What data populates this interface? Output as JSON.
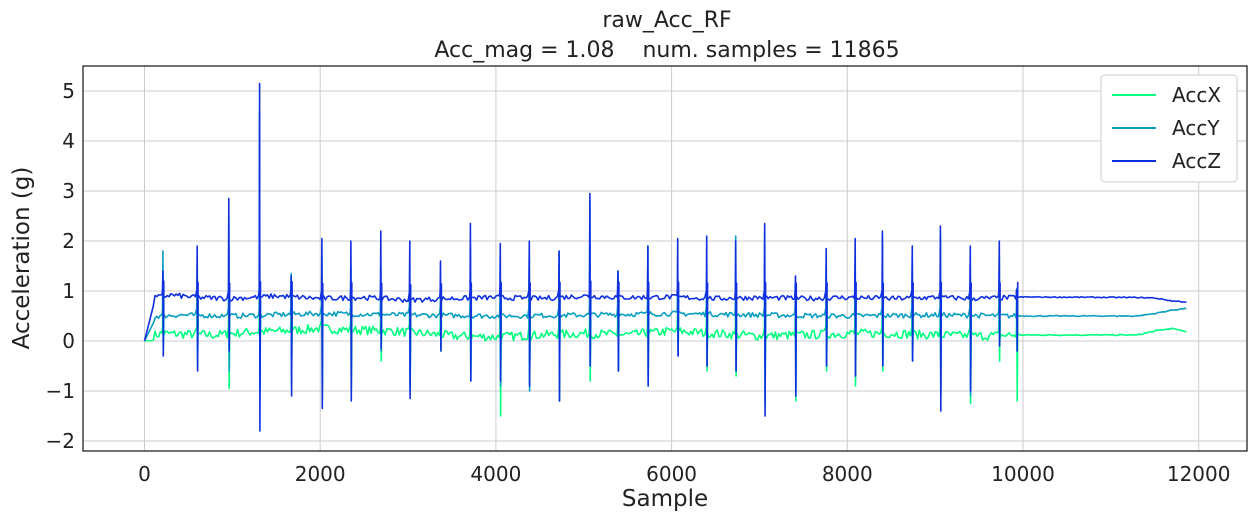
{
  "chart_data": {
    "type": "line",
    "title": "raw_Acc_RF",
    "subtitle": "Acc_mag = 1.08    num. samples = 11865",
    "xlabel": "Sample",
    "ylabel": "Acceleration (g)",
    "xlim": [
      -700,
      12550
    ],
    "ylim": [
      -2.2,
      5.5
    ],
    "xticks": [
      0,
      2000,
      4000,
      6000,
      8000,
      10000,
      12000
    ],
    "xtick_labels": [
      "0",
      "2000",
      "4000",
      "6000",
      "8000",
      "10000",
      "12000"
    ],
    "yticks": [
      -2,
      -1,
      0,
      1,
      2,
      3,
      4,
      5
    ],
    "ytick_labels": [
      "−2",
      "−1",
      "0",
      "1",
      "2",
      "3",
      "4",
      "5"
    ],
    "grid": true,
    "legend_position": "top-right",
    "num_samples": 11865,
    "series": [
      {
        "name": "AccX",
        "color": "#00ff7f",
        "baseline": 0.15,
        "quiet_baseline": 0.12,
        "spikes": [
          [
            210,
            1.3,
            -0.25
          ],
          [
            600,
            1.1,
            -0.5
          ],
          [
            960,
            1.2,
            -0.95
          ],
          [
            1310,
            1.4,
            -0.7
          ],
          [
            1670,
            1.3,
            -0.6
          ],
          [
            2020,
            1.3,
            -0.9
          ],
          [
            2350,
            1.2,
            -0.8
          ],
          [
            2690,
            1.2,
            -0.4
          ],
          [
            3020,
            1.1,
            -0.85
          ],
          [
            3370,
            0.9,
            -0.2
          ],
          [
            3710,
            1.3,
            -0.6
          ],
          [
            4050,
            1.0,
            -1.5
          ],
          [
            4380,
            1.1,
            -0.9
          ],
          [
            4720,
            1.4,
            -0.6
          ],
          [
            5070,
            1.0,
            -0.8
          ],
          [
            5390,
            1.2,
            -0.6
          ],
          [
            5730,
            1.1,
            -0.7
          ],
          [
            6070,
            1.2,
            -0.2
          ],
          [
            6400,
            1.1,
            -0.6
          ],
          [
            6730,
            1.3,
            -0.7
          ],
          [
            7060,
            1.1,
            -0.8
          ],
          [
            7410,
            0.9,
            -1.2
          ],
          [
            7760,
            1.1,
            -0.6
          ],
          [
            8090,
            0.9,
            -0.9
          ],
          [
            8400,
            1.1,
            -0.6
          ],
          [
            8740,
            0.9,
            -0.3
          ],
          [
            9060,
            1.0,
            -0.6
          ],
          [
            9400,
            1.0,
            -1.25
          ],
          [
            9730,
            1.1,
            -0.4
          ],
          [
            9930,
            0.8,
            -1.2
          ]
        ],
        "points": [
          [
            0,
            0.0
          ],
          [
            120,
            0.12
          ],
          [
            200,
            0.15
          ],
          [
            400,
            0.14
          ],
          [
            800,
            0.12
          ],
          [
            1200,
            0.18
          ],
          [
            1600,
            0.2
          ],
          [
            2000,
            0.25
          ],
          [
            2400,
            0.22
          ],
          [
            2800,
            0.2
          ],
          [
            3200,
            0.15
          ],
          [
            3500,
            0.1
          ],
          [
            4000,
            0.08
          ],
          [
            4500,
            0.12
          ],
          [
            5000,
            0.15
          ],
          [
            5500,
            0.12
          ],
          [
            6000,
            0.2
          ],
          [
            6500,
            0.15
          ],
          [
            7000,
            0.1
          ],
          [
            7500,
            0.12
          ],
          [
            8000,
            0.15
          ],
          [
            8500,
            0.15
          ],
          [
            9000,
            0.12
          ],
          [
            9500,
            0.1
          ],
          [
            9900,
            0.12
          ],
          [
            10000,
            0.12
          ],
          [
            11300,
            0.12
          ],
          [
            11500,
            0.2
          ],
          [
            11700,
            0.25
          ],
          [
            11865,
            0.18
          ]
        ]
      },
      {
        "name": "AccY",
        "color": "#0a9ec0",
        "baseline": 0.52,
        "quiet_baseline": 0.5,
        "spikes": [
          [
            210,
            1.8,
            0.3
          ],
          [
            600,
            1.5,
            -0.3
          ],
          [
            960,
            2.5,
            -0.6
          ],
          [
            1310,
            4.6,
            -1.0
          ],
          [
            1670,
            1.35,
            -0.9
          ],
          [
            2020,
            1.7,
            -1.2
          ],
          [
            2350,
            1.5,
            -1.0
          ],
          [
            2690,
            1.5,
            -0.2
          ],
          [
            3020,
            1.0,
            -1.0
          ],
          [
            3370,
            0.8,
            -0.15
          ],
          [
            3710,
            1.9,
            -0.8
          ],
          [
            4050,
            1.1,
            -0.9
          ],
          [
            4380,
            1.7,
            -1.0
          ],
          [
            4720,
            1.8,
            -1.2
          ],
          [
            5070,
            2.8,
            -0.5
          ],
          [
            5390,
            1.4,
            -0.6
          ],
          [
            5730,
            1.9,
            -0.9
          ],
          [
            6070,
            1.3,
            -0.3
          ],
          [
            6400,
            1.4,
            -0.5
          ],
          [
            6730,
            2.1,
            -0.6
          ],
          [
            7060,
            2.2,
            -1.3
          ],
          [
            7410,
            1.0,
            -1.1
          ],
          [
            7760,
            1.5,
            -0.5
          ],
          [
            8090,
            1.7,
            -0.7
          ],
          [
            8400,
            2.1,
            -0.5
          ],
          [
            8740,
            1.6,
            -0.4
          ],
          [
            9060,
            2.1,
            -1.1
          ],
          [
            9400,
            1.5,
            -1.1
          ],
          [
            9730,
            1.7,
            -0.1
          ],
          [
            9930,
            1.05,
            -0.2
          ]
        ],
        "points": [
          [
            0,
            0.0
          ],
          [
            130,
            0.5
          ],
          [
            400,
            0.52
          ],
          [
            1000,
            0.5
          ],
          [
            2000,
            0.55
          ],
          [
            3000,
            0.52
          ],
          [
            4000,
            0.5
          ],
          [
            5000,
            0.52
          ],
          [
            6000,
            0.55
          ],
          [
            7000,
            0.52
          ],
          [
            8000,
            0.5
          ],
          [
            9000,
            0.52
          ],
          [
            9900,
            0.5
          ],
          [
            10000,
            0.5
          ],
          [
            11300,
            0.5
          ],
          [
            11500,
            0.55
          ],
          [
            11700,
            0.62
          ],
          [
            11865,
            0.65
          ]
        ]
      },
      {
        "name": "AccZ",
        "color": "#1030e0",
        "baseline": 0.87,
        "quiet_baseline": 0.87,
        "spikes": [
          [
            210,
            1.4,
            -0.3
          ],
          [
            600,
            1.9,
            -0.6
          ],
          [
            960,
            2.85,
            -0.2
          ],
          [
            1310,
            5.15,
            -1.8
          ],
          [
            1670,
            1.3,
            -1.1
          ],
          [
            2020,
            2.05,
            -1.35
          ],
          [
            2350,
            2.0,
            -1.2
          ],
          [
            2690,
            2.2,
            -0.15
          ],
          [
            3020,
            2.0,
            -1.15
          ],
          [
            3370,
            1.6,
            -0.2
          ],
          [
            3710,
            2.35,
            -0.8
          ],
          [
            4050,
            1.95,
            -0.8
          ],
          [
            4380,
            2.0,
            -0.9
          ],
          [
            4720,
            1.8,
            -1.2
          ],
          [
            5070,
            2.95,
            -0.5
          ],
          [
            5390,
            1.4,
            -0.6
          ],
          [
            5730,
            1.9,
            -0.9
          ],
          [
            6070,
            2.05,
            -0.3
          ],
          [
            6400,
            2.1,
            -0.5
          ],
          [
            6730,
            2.0,
            -0.6
          ],
          [
            7060,
            2.35,
            -1.5
          ],
          [
            7410,
            1.3,
            -1.1
          ],
          [
            7760,
            1.85,
            -0.5
          ],
          [
            8090,
            2.05,
            -0.7
          ],
          [
            8400,
            2.2,
            -0.5
          ],
          [
            8740,
            1.9,
            -0.4
          ],
          [
            9060,
            2.3,
            -1.4
          ],
          [
            9400,
            1.9,
            -1.0
          ],
          [
            9730,
            2.0,
            -0.1
          ],
          [
            9930,
            1.0,
            -0.2
          ]
        ],
        "points": [
          [
            0,
            0.0
          ],
          [
            120,
            0.87
          ],
          [
            300,
            0.92
          ],
          [
            600,
            0.87
          ],
          [
            1000,
            0.85
          ],
          [
            1500,
            0.9
          ],
          [
            2000,
            0.85
          ],
          [
            2500,
            0.87
          ],
          [
            3000,
            0.82
          ],
          [
            3500,
            0.85
          ],
          [
            4000,
            0.87
          ],
          [
            4500,
            0.85
          ],
          [
            5000,
            0.9
          ],
          [
            5500,
            0.87
          ],
          [
            6000,
            0.88
          ],
          [
            6500,
            0.85
          ],
          [
            7000,
            0.87
          ],
          [
            7500,
            0.85
          ],
          [
            8000,
            0.87
          ],
          [
            8500,
            0.85
          ],
          [
            9000,
            0.87
          ],
          [
            9500,
            0.85
          ],
          [
            9900,
            0.87
          ],
          [
            10000,
            0.88
          ],
          [
            11300,
            0.87
          ],
          [
            11500,
            0.86
          ],
          [
            11700,
            0.8
          ],
          [
            11865,
            0.78
          ]
        ]
      }
    ]
  }
}
